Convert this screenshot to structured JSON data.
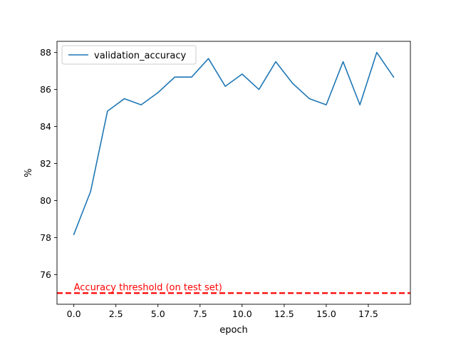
{
  "chart_data": {
    "type": "line",
    "title": "",
    "xlabel": "epoch",
    "ylabel": "%",
    "xlim": [
      -1.0,
      20.0
    ],
    "ylim": [
      74.4,
      88.6
    ],
    "x_ticks": [
      0.0,
      2.5,
      5.0,
      7.5,
      10.0,
      12.5,
      15.0,
      17.5
    ],
    "x_tick_labels": [
      "0.0",
      "2.5",
      "5.0",
      "7.5",
      "10.0",
      "12.5",
      "15.0",
      "17.5"
    ],
    "y_ticks": [
      76,
      78,
      80,
      82,
      84,
      86,
      88
    ],
    "y_tick_labels": [
      "76",
      "78",
      "80",
      "82",
      "84",
      "86",
      "88"
    ],
    "grid": false,
    "legend_position": "top-left",
    "series": [
      {
        "name": "validation_accuracy",
        "color": "#1f77b4",
        "x": [
          0,
          1,
          2,
          3,
          4,
          5,
          6,
          7,
          8,
          9,
          10,
          11,
          12,
          13,
          14,
          15,
          16,
          17,
          18,
          19
        ],
        "y": [
          78.17,
          80.5,
          84.83,
          85.5,
          85.17,
          85.83,
          86.67,
          86.67,
          87.67,
          86.17,
          86.83,
          86.0,
          87.5,
          86.33,
          85.5,
          85.17,
          87.5,
          85.17,
          88.0,
          86.67
        ]
      }
    ],
    "threshold": {
      "value": 75,
      "color": "#ff0000",
      "style": "dashed",
      "label": "Accuracy threshold (on test set)"
    }
  }
}
